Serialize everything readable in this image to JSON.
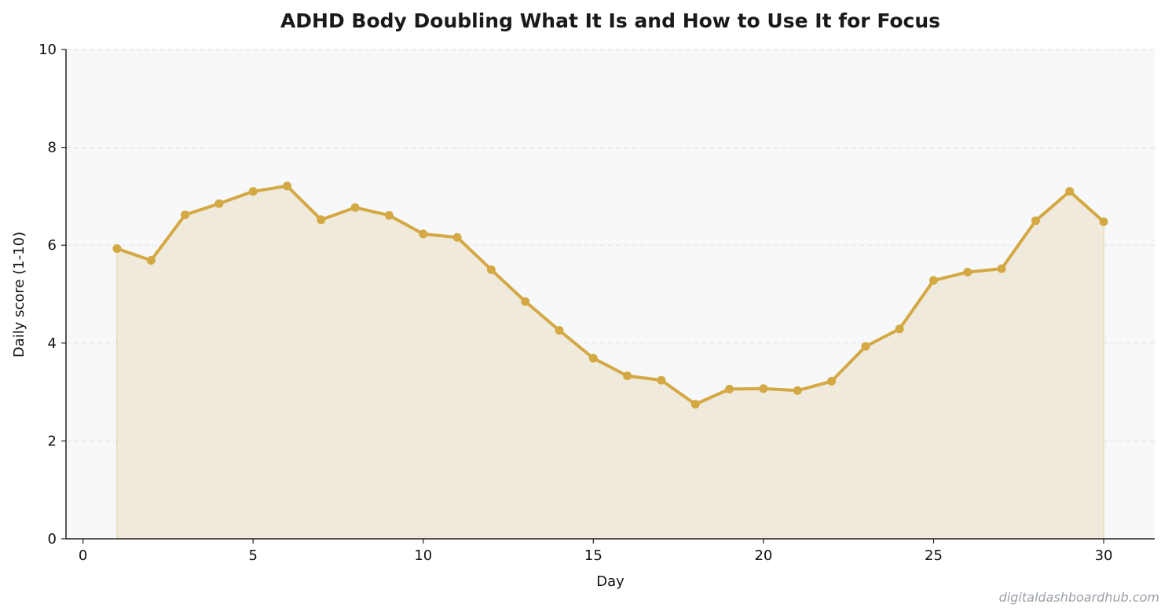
{
  "chart_data": {
    "type": "line",
    "title": "ADHD Body Doubling  What It Is and How to Use It for Focus",
    "xlabel": "Day",
    "ylabel": "Daily score (1-10)",
    "xlim": [
      -0.5,
      31.5
    ],
    "ylim": [
      0,
      10
    ],
    "xticks": [
      0,
      5,
      10,
      15,
      20,
      25,
      30
    ],
    "yticks": [
      0,
      2,
      4,
      6,
      8,
      10
    ],
    "grid": "horizontal dashed",
    "area_fill": true,
    "colors": {
      "line": "#d4a843",
      "fill": "#f0eadc",
      "plot_bg": "#f7f8fa",
      "grid": "#e3e5e8",
      "axis": "#222222"
    },
    "series": [
      {
        "x": [
          1,
          2,
          3,
          4,
          5,
          6,
          7,
          8,
          9,
          10,
          11,
          12,
          13,
          14,
          15,
          16,
          17,
          18,
          19,
          20,
          21,
          22,
          23,
          24,
          25,
          26,
          27,
          28,
          29,
          30
        ],
        "values": [
          5.93,
          5.69,
          6.62,
          6.85,
          7.1,
          7.21,
          6.52,
          6.77,
          6.61,
          6.23,
          6.16,
          5.5,
          4.85,
          4.26,
          3.69,
          3.33,
          3.24,
          2.75,
          3.06,
          3.07,
          3.03,
          3.22,
          3.93,
          4.29,
          5.28,
          5.45,
          5.52,
          6.5,
          7.1,
          6.48
        ]
      }
    ]
  },
  "footer": {
    "watermark": "digitaldashboardhub.com"
  }
}
